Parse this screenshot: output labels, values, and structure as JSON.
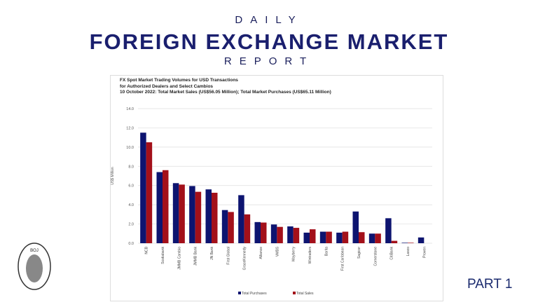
{
  "header": {
    "line1": "DAILY",
    "line2": "FOREIGN EXCHANGE MARKET",
    "line3": "REPORT"
  },
  "footer": {
    "part": "PART 1",
    "logo_text": "BANK OF JAMAICA"
  },
  "colors": {
    "title": "#1a1f6e",
    "purchases": "#0d1470",
    "sales": "#a3101a"
  },
  "chart_data": {
    "type": "bar",
    "title": [
      "FX Spot Market Trading Volumes for USD Transactions",
      "for Authorized Dealers and Select Cambios",
      "10 October 2022: Total Market Sales (US$56.05 Million); Total Market Purchases (US$65.11 Million)"
    ],
    "ylabel": "US$ Million",
    "xlabel": "",
    "ylim": [
      0,
      14
    ],
    "yticks": [
      "0.0",
      "2.0",
      "4.0",
      "6.0",
      "8.0",
      "10.0",
      "12.0",
      "14.0"
    ],
    "grid": true,
    "legend": "bottom",
    "categories": [
      "NCB",
      "Scotiabank",
      "JMMB Cambio",
      "JMMB Bank",
      "JN Bank",
      "First Global",
      "GraceKennedy",
      "Alliance",
      "VMBS",
      "Mayberry",
      "Wintraders",
      "Barita",
      "First Caribbean",
      "Sagicor",
      "Cornerstone",
      "CitiBank",
      "Lasco",
      "Proven"
    ],
    "series": [
      {
        "name": "Total Purchases",
        "values": [
          11.5,
          7.4,
          6.25,
          5.95,
          5.6,
          3.45,
          5.0,
          2.2,
          1.95,
          1.75,
          1.1,
          1.2,
          1.1,
          3.3,
          1.0,
          2.6,
          0.05,
          0.6
        ]
      },
      {
        "name": "Total Sales",
        "values": [
          10.5,
          7.6,
          6.1,
          5.35,
          5.25,
          3.25,
          3.0,
          2.15,
          1.7,
          1.6,
          1.45,
          1.2,
          1.2,
          1.15,
          1.0,
          0.25,
          0.05,
          0.0
        ]
      }
    ]
  }
}
